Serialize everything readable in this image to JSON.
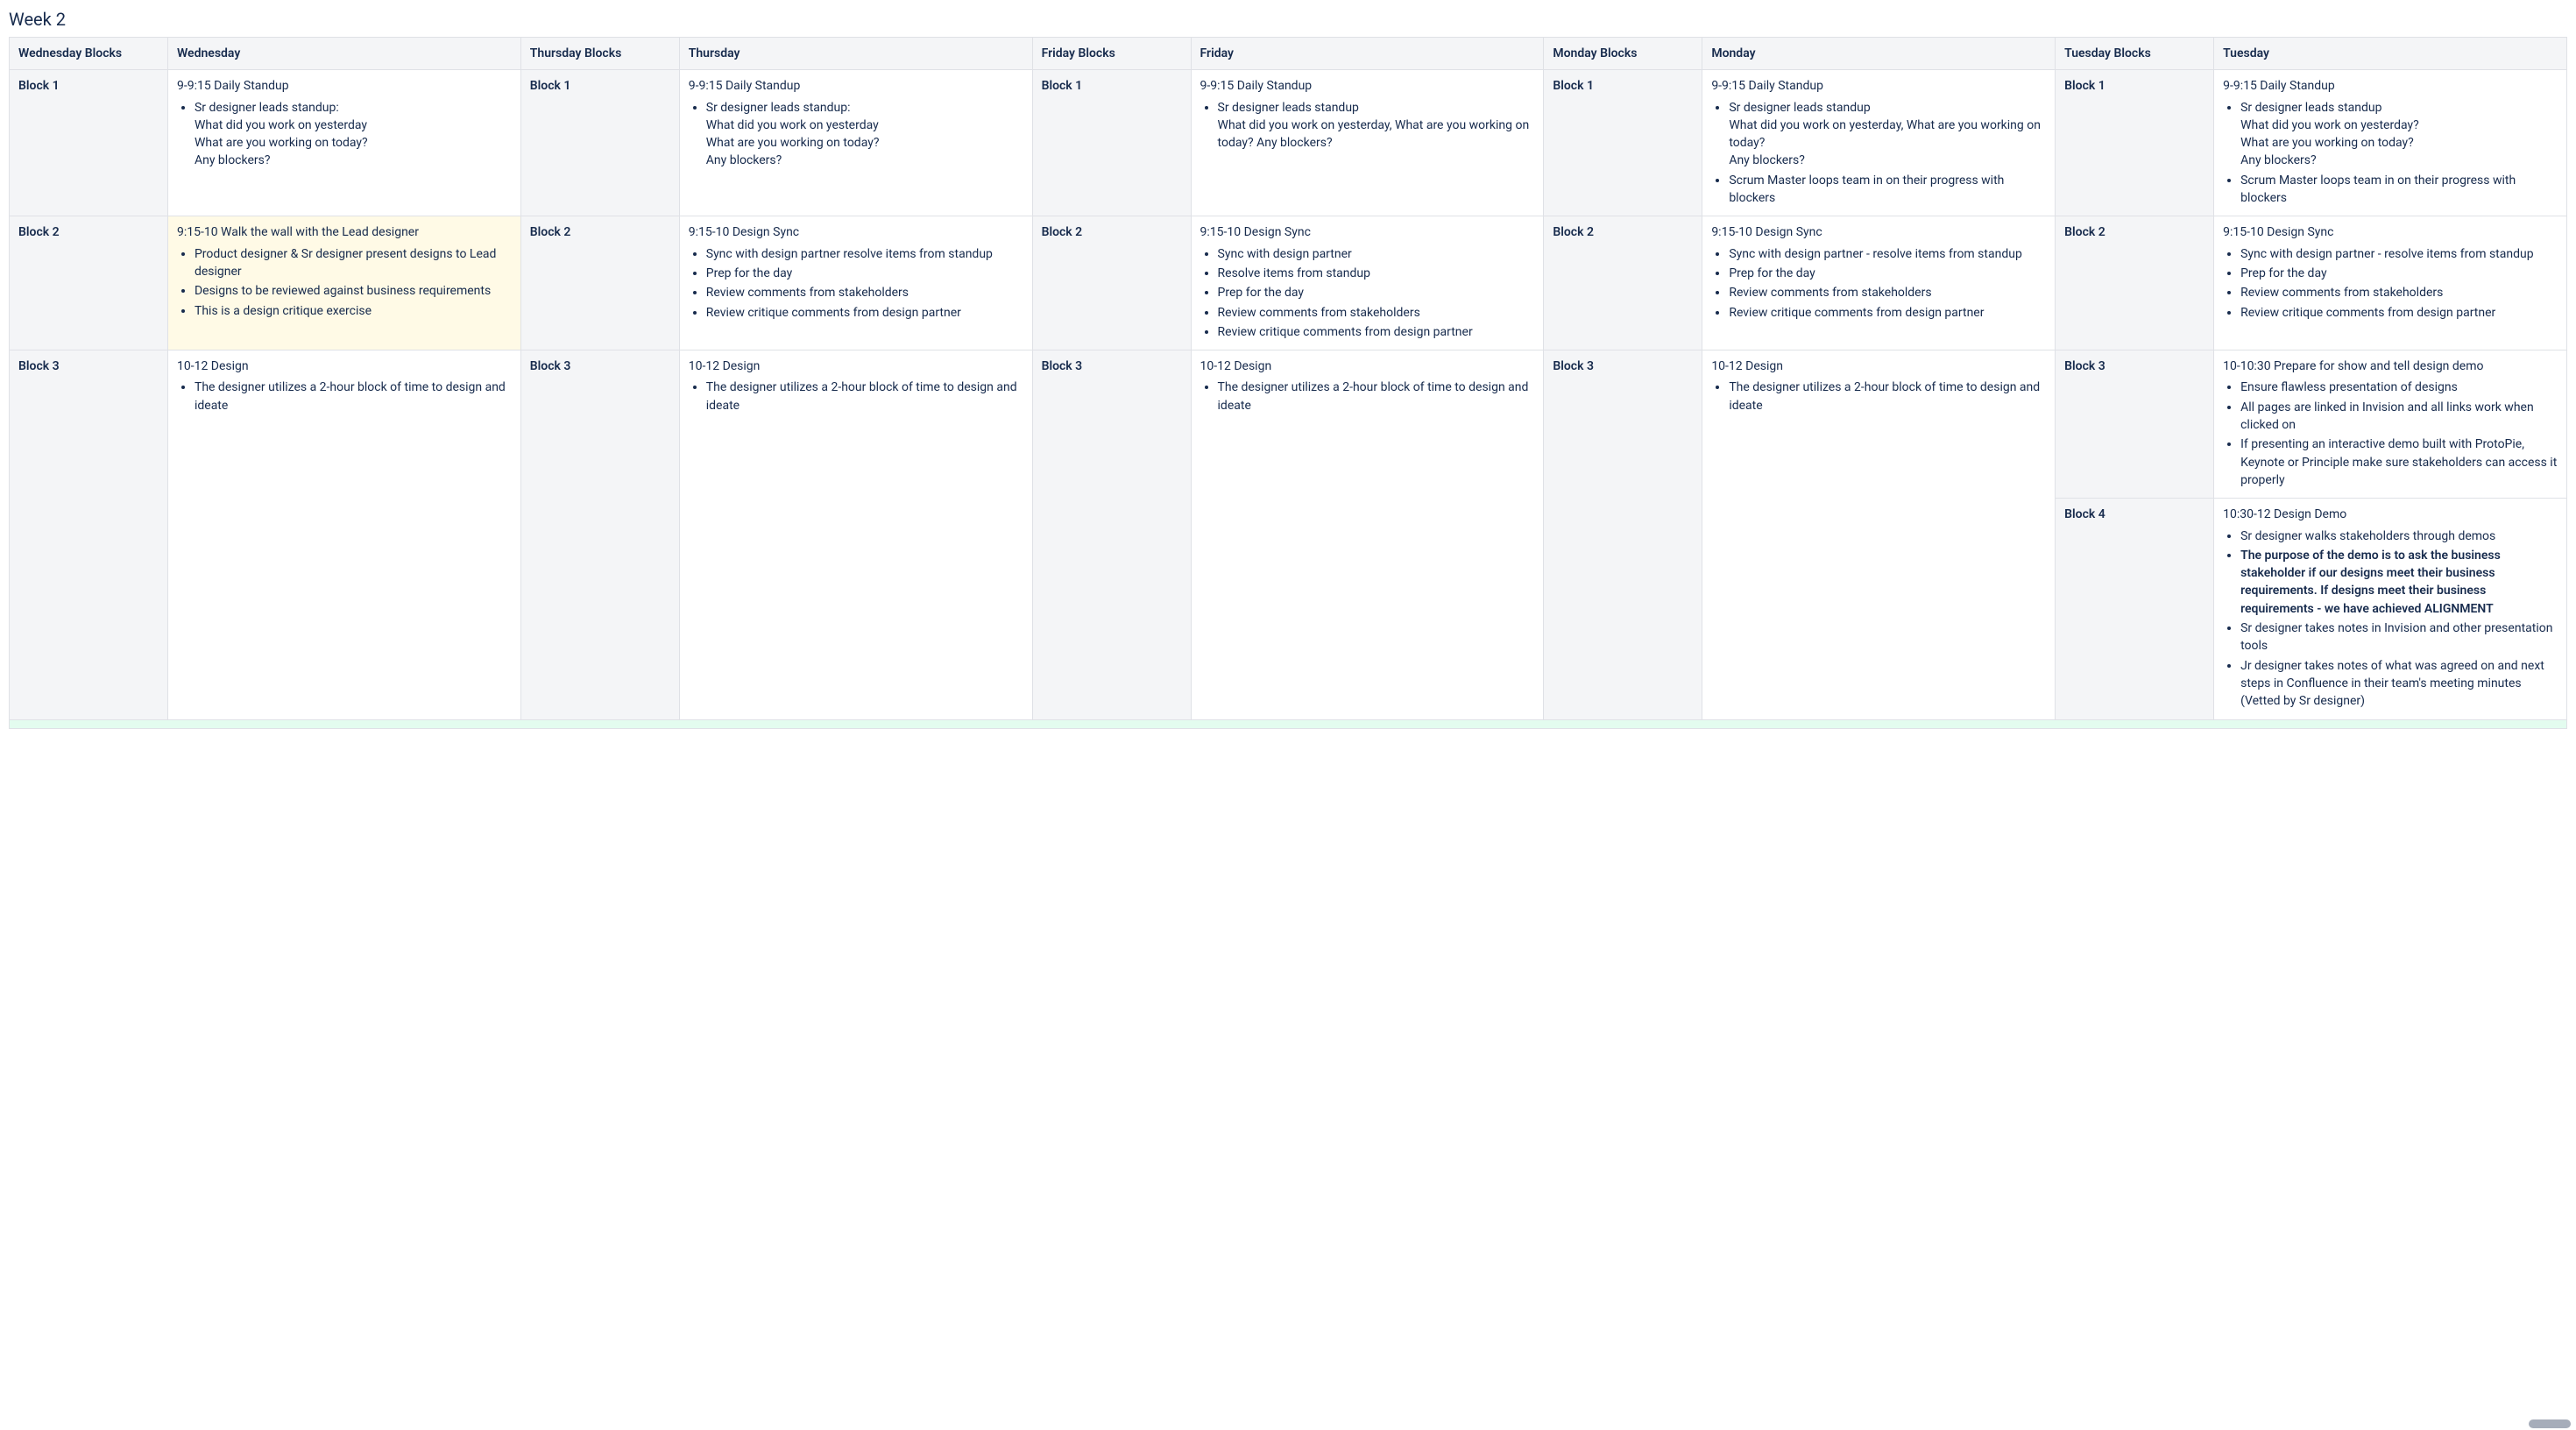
{
  "title": "Week 2",
  "columns": [
    "Wednesday Blocks",
    "Wednesday",
    "Thursday Blocks",
    "Thursday",
    "Friday Blocks",
    "Friday",
    "Monday Blocks",
    "Monday",
    "Tuesday Blocks",
    "Tuesday"
  ],
  "cells": {
    "wed": {
      "b1": {
        "label": "Block 1",
        "title": "9-9:15 Daily Standup",
        "bullets": [
          "Sr designer leads standup:\nWhat did you work on yesterday\nWhat are you working on today?\nAny blockers?"
        ]
      },
      "b2": {
        "label": "Block 2",
        "title": "9:15-10 Walk the wall with the Lead designer",
        "bullets": [
          "Product designer & Sr designer present designs to Lead designer",
          "Designs to be reviewed against business requirements",
          "This is a design critique exercise"
        ]
      },
      "b3": {
        "label": "Block 3",
        "title": "10-12 Design",
        "bullets": [
          "The designer utilizes a 2-hour block of time to design and ideate"
        ]
      }
    },
    "thu": {
      "b1": {
        "label": "Block 1",
        "title": "9-9:15 Daily Standup",
        "bullets": [
          "Sr designer leads standup:\nWhat did you work on yesterday\nWhat are you working on today?\nAny blockers?"
        ]
      },
      "b2": {
        "label": "Block 2",
        "title": "9:15-10 Design Sync",
        "bullets": [
          "Sync with design partner resolve items from standup",
          "Prep for the day",
          "Review comments from stakeholders",
          "Review critique comments from design partner"
        ]
      },
      "b3": {
        "label": "Block 3",
        "title": "10-12 Design",
        "bullets": [
          "The designer utilizes a 2-hour block of time to design and ideate"
        ]
      }
    },
    "fri": {
      "b1": {
        "label": "Block 1",
        "title": "9-9:15 Daily Standup",
        "bullets": [
          "Sr designer leads standup\nWhat did you work on yesterday, What are you working on today? Any blockers?"
        ]
      },
      "b2": {
        "label": "Block 2",
        "title": "9:15-10 Design Sync",
        "bullets": [
          "Sync with design partner",
          "Resolve items from standup",
          "Prep for the day",
          "Review comments from stakeholders",
          "Review critique comments from design partner"
        ]
      },
      "b3": {
        "label": "Block 3",
        "title": "10-12  Design",
        "bullets": [
          "The designer utilizes a 2-hour block of time to design and ideate"
        ]
      }
    },
    "mon": {
      "b1": {
        "label": "Block 1",
        "title": "9-9:15 Daily Standup",
        "bullets": [
          "Sr designer leads standup\nWhat did you work on yesterday, What are you working on today?\nAny blockers?",
          "Scrum Master loops team in on their progress with blockers"
        ]
      },
      "b2": {
        "label": "Block 2",
        "title": "9:15-10 Design Sync",
        "bullets": [
          "Sync with design partner - resolve items from standup",
          "Prep for the day",
          "Review comments from stakeholders",
          "Review critique comments from design partner"
        ]
      },
      "b3": {
        "label": "Block 3",
        "title": "10-12 Design",
        "bullets": [
          "The designer utilizes a 2-hour block of time to design and ideate"
        ]
      }
    },
    "tue": {
      "b1": {
        "label": "Block 1",
        "title": "9-9:15 Daily Standup",
        "bullets": [
          "Sr designer leads standup\nWhat did you work on yesterday?\nWhat are you working on today?\nAny blockers?",
          "Scrum Master loops team in on their progress with blockers"
        ]
      },
      "b2": {
        "label": "Block 2",
        "title": "9:15-10 Design Sync",
        "bullets": [
          "Sync with design partner - resolve items from standup",
          "Prep for the day",
          "Review comments from stakeholders",
          "Review critique comments from design partner"
        ]
      },
      "b3": {
        "label": "Block 3",
        "title": "10-10:30 Prepare for show and tell design demo",
        "bullets": [
          "Ensure flawless presentation of designs",
          "All pages are linked in Invision and all links work when clicked on",
          "If presenting an interactive demo built with ProtoPie, Keynote or Principle make sure stakeholders can access it properly"
        ]
      },
      "b4": {
        "label": "Block 4",
        "title": "10:30-12 Design Demo",
        "bullets": [
          "Sr designer walks stakeholders through demos",
          "The purpose of the demo is to ask the business stakeholder if our designs meet their business requirements. If designs meet their business requirements - we have achieved ALIGNMENT",
          "Sr designer takes notes in Invision and other presentation tools",
          "Jr designer takes notes of what was agreed on and next steps in Confluence in their team's meeting minutes (Vetted by Sr designer)"
        ],
        "strong_index": 1
      }
    }
  }
}
